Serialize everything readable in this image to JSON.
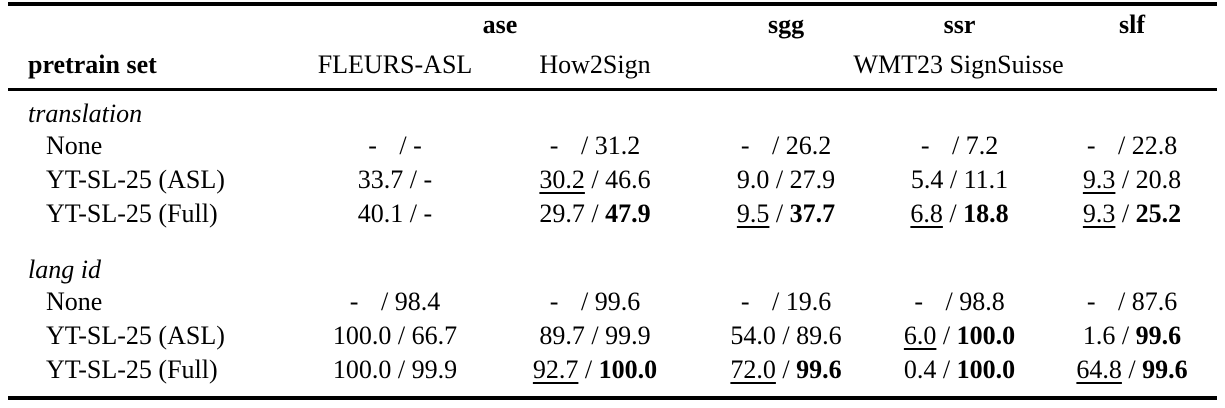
{
  "table": {
    "sep": " / ",
    "header": {
      "row1": {
        "ase": "ase",
        "sgg": "sgg",
        "ssr": "ssr",
        "slf": "slf"
      },
      "row2": {
        "pretrain_set": "pretrain set",
        "fleurs_asl": "FLEURS-ASL",
        "how2sign": "How2Sign",
        "wmt23_signsuisse": "WMT23 SignSuisse"
      }
    },
    "sections": [
      {
        "label": "translation",
        "rows": [
          {
            "name": "None",
            "cells": [
              {
                "l": "-",
                "r": "-",
                "wide": true
              },
              {
                "l": "-",
                "r": "31.2",
                "wide": true
              },
              {
                "l": "-",
                "r": "26.2",
                "wide": true
              },
              {
                "l": "-",
                "r": "7.2",
                "wide": true
              },
              {
                "l": "-",
                "r": "22.8",
                "wide": true
              }
            ]
          },
          {
            "name": "YT-SL-25 (ASL)",
            "cells": [
              {
                "l": "33.7",
                "r": "-"
              },
              {
                "l": "30.2",
                "r": "46.6",
                "ul": true
              },
              {
                "l": "9.0",
                "r": "27.9"
              },
              {
                "l": "5.4",
                "r": "11.1"
              },
              {
                "l": "9.3",
                "r": "20.8",
                "ul": true
              }
            ]
          },
          {
            "name": "YT-SL-25 (Full)",
            "cells": [
              {
                "l": "40.1",
                "r": "-"
              },
              {
                "l": "29.7",
                "r": "47.9",
                "br": true
              },
              {
                "l": "9.5",
                "r": "37.7",
                "ul": true,
                "br": true
              },
              {
                "l": "6.8",
                "r": "18.8",
                "ul": true,
                "br": true
              },
              {
                "l": "9.3",
                "r": "25.2",
                "ul": true,
                "br": true
              }
            ]
          }
        ]
      },
      {
        "label": "lang id",
        "rows": [
          {
            "name": "None",
            "cells": [
              {
                "l": "-",
                "r": "98.4",
                "wide": true
              },
              {
                "l": "-",
                "r": "99.6",
                "wide": true
              },
              {
                "l": "-",
                "r": "19.6",
                "wide": true
              },
              {
                "l": "-",
                "r": "98.8",
                "wide": true
              },
              {
                "l": "-",
                "r": "87.6",
                "wide": true
              }
            ]
          },
          {
            "name": "YT-SL-25 (ASL)",
            "cells": [
              {
                "l": "100.0",
                "r": "66.7"
              },
              {
                "l": "89.7",
                "r": "99.9"
              },
              {
                "l": "54.0",
                "r": "89.6"
              },
              {
                "l": "6.0",
                "r": "100.0",
                "ul": true,
                "br": true
              },
              {
                "l": "1.6",
                "r": "99.6",
                "br": true
              }
            ]
          },
          {
            "name": "YT-SL-25 (Full)",
            "cells": [
              {
                "l": "100.0",
                "r": "99.9"
              },
              {
                "l": "92.7",
                "r": "100.0",
                "ul": true,
                "br": true
              },
              {
                "l": "72.0",
                "r": "99.6",
                "ul": true,
                "br": true
              },
              {
                "l": "0.4",
                "r": "100.0",
                "br": true
              },
              {
                "l": "64.8",
                "r": "99.6",
                "ul": true,
                "br": true
              }
            ]
          }
        ]
      }
    ]
  }
}
